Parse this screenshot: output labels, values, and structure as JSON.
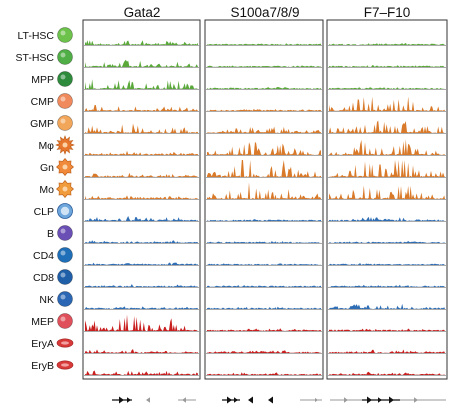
{
  "chart_data": {
    "type": "area",
    "panels": [
      {
        "title": "Gata2"
      },
      {
        "title": "S100a7/8/9"
      },
      {
        "title": "F7–F10"
      }
    ],
    "rows": [
      {
        "label": "LT-HSC",
        "color": "#5aa83a",
        "cell_color": "#6cc24a",
        "cell_shape": "round",
        "levels": [
          0.3,
          0.05,
          0.05
        ]
      },
      {
        "label": "ST-HSC",
        "color": "#5aa83a",
        "cell_color": "#4fae45",
        "cell_shape": "round",
        "levels": [
          0.45,
          0.05,
          0.05
        ]
      },
      {
        "label": "MPP",
        "color": "#5aa83a",
        "cell_color": "#2e8b3c",
        "cell_shape": "round",
        "levels": [
          0.55,
          0.05,
          0.05
        ]
      },
      {
        "label": "CMP",
        "color": "#d97a2a",
        "cell_color": "#f08a5d",
        "cell_shape": "round",
        "levels": [
          0.35,
          0.05,
          0.75
        ]
      },
      {
        "label": "GMP",
        "color": "#d97a2a",
        "cell_color": "#f2a65a",
        "cell_shape": "round",
        "levels": [
          0.45,
          0.3,
          0.9
        ]
      },
      {
        "label": "Mφ",
        "color": "#d97a2a",
        "cell_color": "#e8772e",
        "cell_shape": "spiky",
        "levels": [
          0.15,
          0.7,
          0.85
        ]
      },
      {
        "label": "Gn",
        "color": "#d97a2a",
        "cell_color": "#f08a3a",
        "cell_shape": "flower",
        "levels": [
          0.15,
          0.95,
          0.95
        ]
      },
      {
        "label": "Mo",
        "color": "#d97a2a",
        "cell_color": "#f09b3c",
        "cell_shape": "flower",
        "levels": [
          0.15,
          0.7,
          0.75
        ]
      },
      {
        "label": "CLP",
        "color": "#2f6eb5",
        "cell_color": "#6ca6dc",
        "cell_shape": "ring",
        "levels": [
          0.25,
          0.05,
          0.15
        ]
      },
      {
        "label": "B",
        "color": "#2f6eb5",
        "cell_color": "#6a4fb5",
        "cell_shape": "round",
        "levels": [
          0.1,
          0.05,
          0.05
        ]
      },
      {
        "label": "CD4",
        "color": "#2f6eb5",
        "cell_color": "#1f6fb8",
        "cell_shape": "round",
        "levels": [
          0.1,
          0.05,
          0.05
        ]
      },
      {
        "label": "CD8",
        "color": "#2f6eb5",
        "cell_color": "#1f5fa8",
        "cell_shape": "round",
        "levels": [
          0.1,
          0.05,
          0.05
        ]
      },
      {
        "label": "NK",
        "color": "#2f6eb5",
        "cell_color": "#2a66b3",
        "cell_shape": "round",
        "levels": [
          0.1,
          0.05,
          0.3
        ]
      },
      {
        "label": "MEP",
        "color": "#c81e1e",
        "cell_color": "#e0505a",
        "cell_shape": "round",
        "levels": [
          0.85,
          0.1,
          0.1
        ]
      },
      {
        "label": "EryA",
        "color": "#c81e1e",
        "cell_color": "#d83a3a",
        "cell_shape": "disc",
        "levels": [
          0.2,
          0.1,
          0.15
        ]
      },
      {
        "label": "EryB",
        "color": "#c81e1e",
        "cell_color": "#d83a3a",
        "cell_shape": "disc",
        "levels": [
          0.25,
          0.1,
          0.1
        ]
      }
    ],
    "frame_color": "#333333",
    "gene_color": "#111111",
    "gene_arrow_color": "#9a9a9a"
  }
}
